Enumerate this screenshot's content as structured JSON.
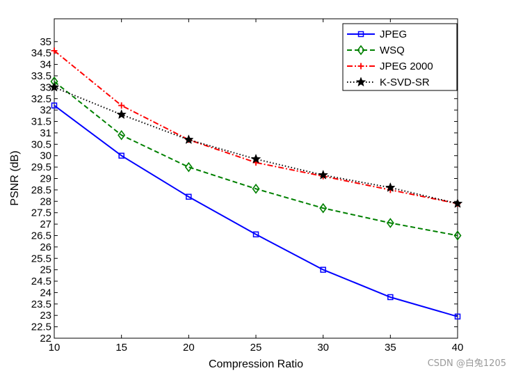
{
  "chart_data": {
    "type": "line",
    "title": "",
    "xlabel": "Compression Ratio",
    "ylabel": "PSNR (dB)",
    "xlim": [
      10,
      40
    ],
    "ylim": [
      22,
      36
    ],
    "x_ticks": [
      "10",
      "15",
      "20",
      "25",
      "30",
      "35",
      "40"
    ],
    "y_ticks": [
      "22",
      "22.5",
      "23",
      "23.5",
      "24",
      "24.5",
      "25",
      "25.5",
      "26",
      "26.5",
      "27",
      "27.5",
      "28",
      "28.5",
      "29",
      "29.5",
      "30",
      "30.5",
      "31",
      "31.5",
      "32",
      "32.5",
      "33",
      "33.5",
      "34",
      "34.5",
      "35"
    ],
    "grid": false,
    "legend_position": "top-right",
    "x": [
      10,
      15,
      20,
      25,
      30,
      35,
      40
    ],
    "series": [
      {
        "name": "JPEG",
        "color": "#0000ff",
        "line": "solid",
        "marker": "square",
        "values": [
          32.2,
          30.0,
          28.2,
          26.55,
          25.0,
          23.8,
          22.95
        ]
      },
      {
        "name": "WSQ",
        "color": "#008000",
        "line": "dashed",
        "marker": "diamond",
        "values": [
          33.25,
          30.9,
          29.5,
          28.55,
          27.7,
          27.05,
          26.5
        ]
      },
      {
        "name": "JPEG 2000",
        "color": "#ff0000",
        "line": "dashdot",
        "marker": "plus",
        "values": [
          34.6,
          32.2,
          30.7,
          29.7,
          29.1,
          28.5,
          27.9
        ]
      },
      {
        "name": "K-SVD-SR",
        "color": "#000000",
        "line": "dotted",
        "marker": "star",
        "values": [
          33.0,
          31.8,
          30.7,
          29.85,
          29.15,
          28.6,
          27.9
        ]
      }
    ]
  },
  "watermark": "CSDN @白兔1205"
}
